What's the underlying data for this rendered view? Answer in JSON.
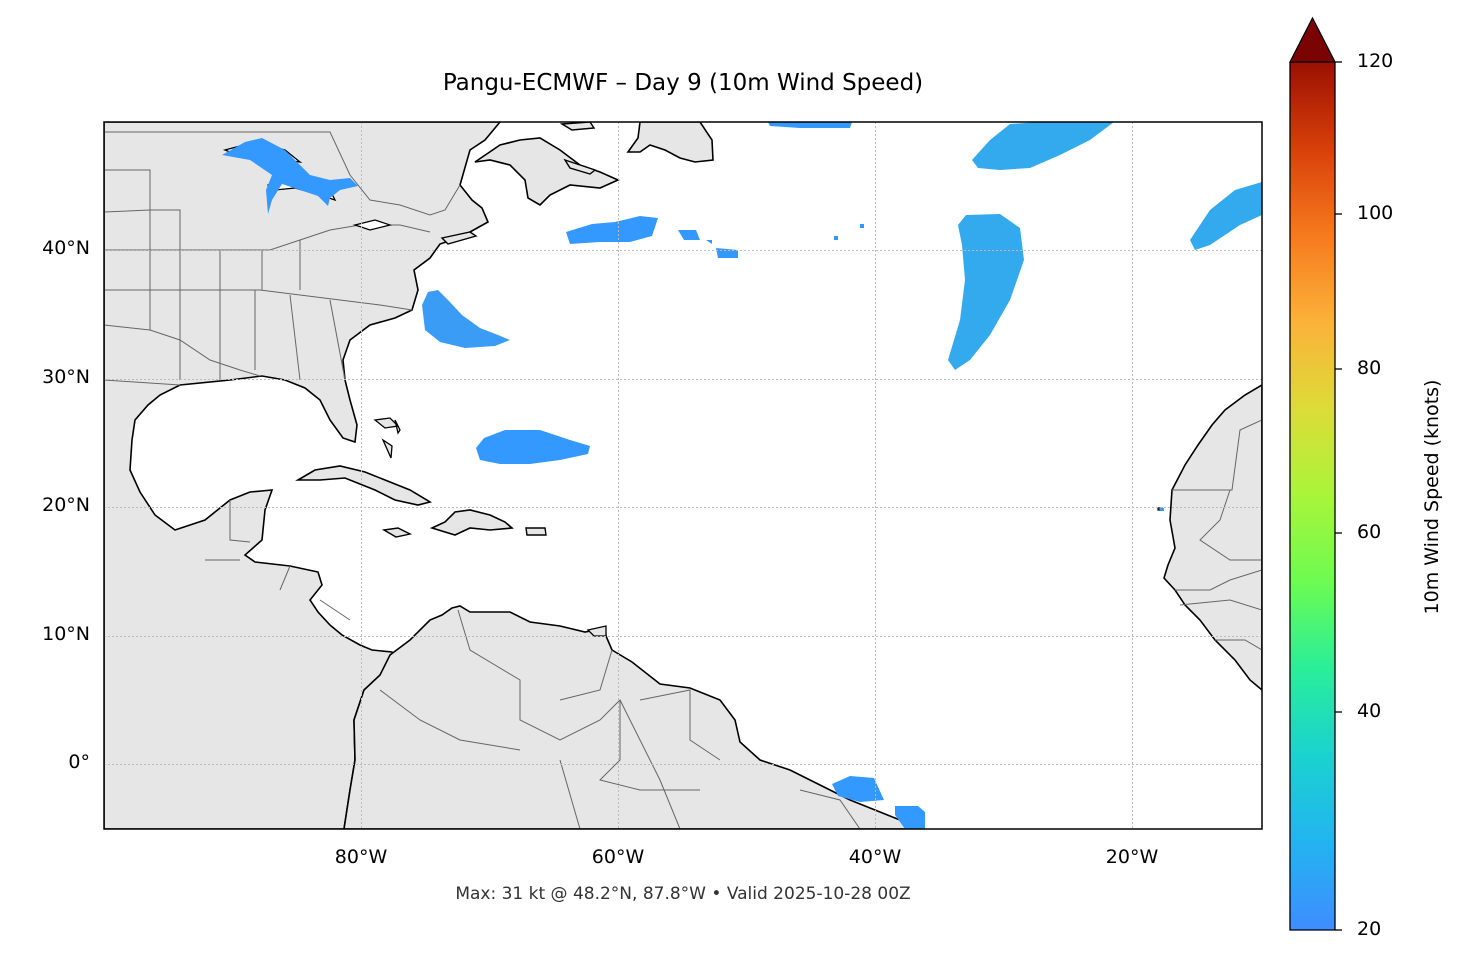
{
  "title": "Pangu-ECMWF – Day 9 (10m Wind Speed)",
  "footer": "Max: 31 kt @ 48.2°N, 87.8°W • Valid 2025-10-28 00Z",
  "map": {
    "lat_labels": [
      "40°N",
      "30°N",
      "20°N",
      "10°N",
      "0°"
    ],
    "lon_labels": [
      "80°W",
      "60°W",
      "40°W",
      "20°W"
    ],
    "lat_range": [
      -5,
      50
    ],
    "lon_range": [
      -100,
      -10
    ],
    "land_color": "#e6e6e6",
    "coast_color": "#000000",
    "border_color": "#666666",
    "gridlines": "dotted",
    "wind_areas": [
      {
        "region": "Great Lakes",
        "color": "#3399ff"
      },
      {
        "region": "Off North Carolina",
        "color": "#3399ff"
      },
      {
        "region": "North of Nova Scotia to Grand Banks",
        "color": "#3399ff"
      },
      {
        "region": "Sargasso Sea",
        "color": "#3399ff"
      },
      {
        "region": "Mid-Atlantic 30-43N",
        "color": "#33aaee"
      },
      {
        "region": "North Atlantic 48-50N",
        "color": "#33aaee"
      },
      {
        "region": "Off Iberia",
        "color": "#33aaee"
      },
      {
        "region": "Off Brazil",
        "color": "#3399ff"
      }
    ]
  },
  "colorbar": {
    "label": "10m Wind Speed (knots)",
    "ticks": [
      "120",
      "100",
      "80",
      "60",
      "40",
      "20"
    ],
    "min": 20,
    "max": 120,
    "extend": "max",
    "colormap": "turbo"
  }
}
